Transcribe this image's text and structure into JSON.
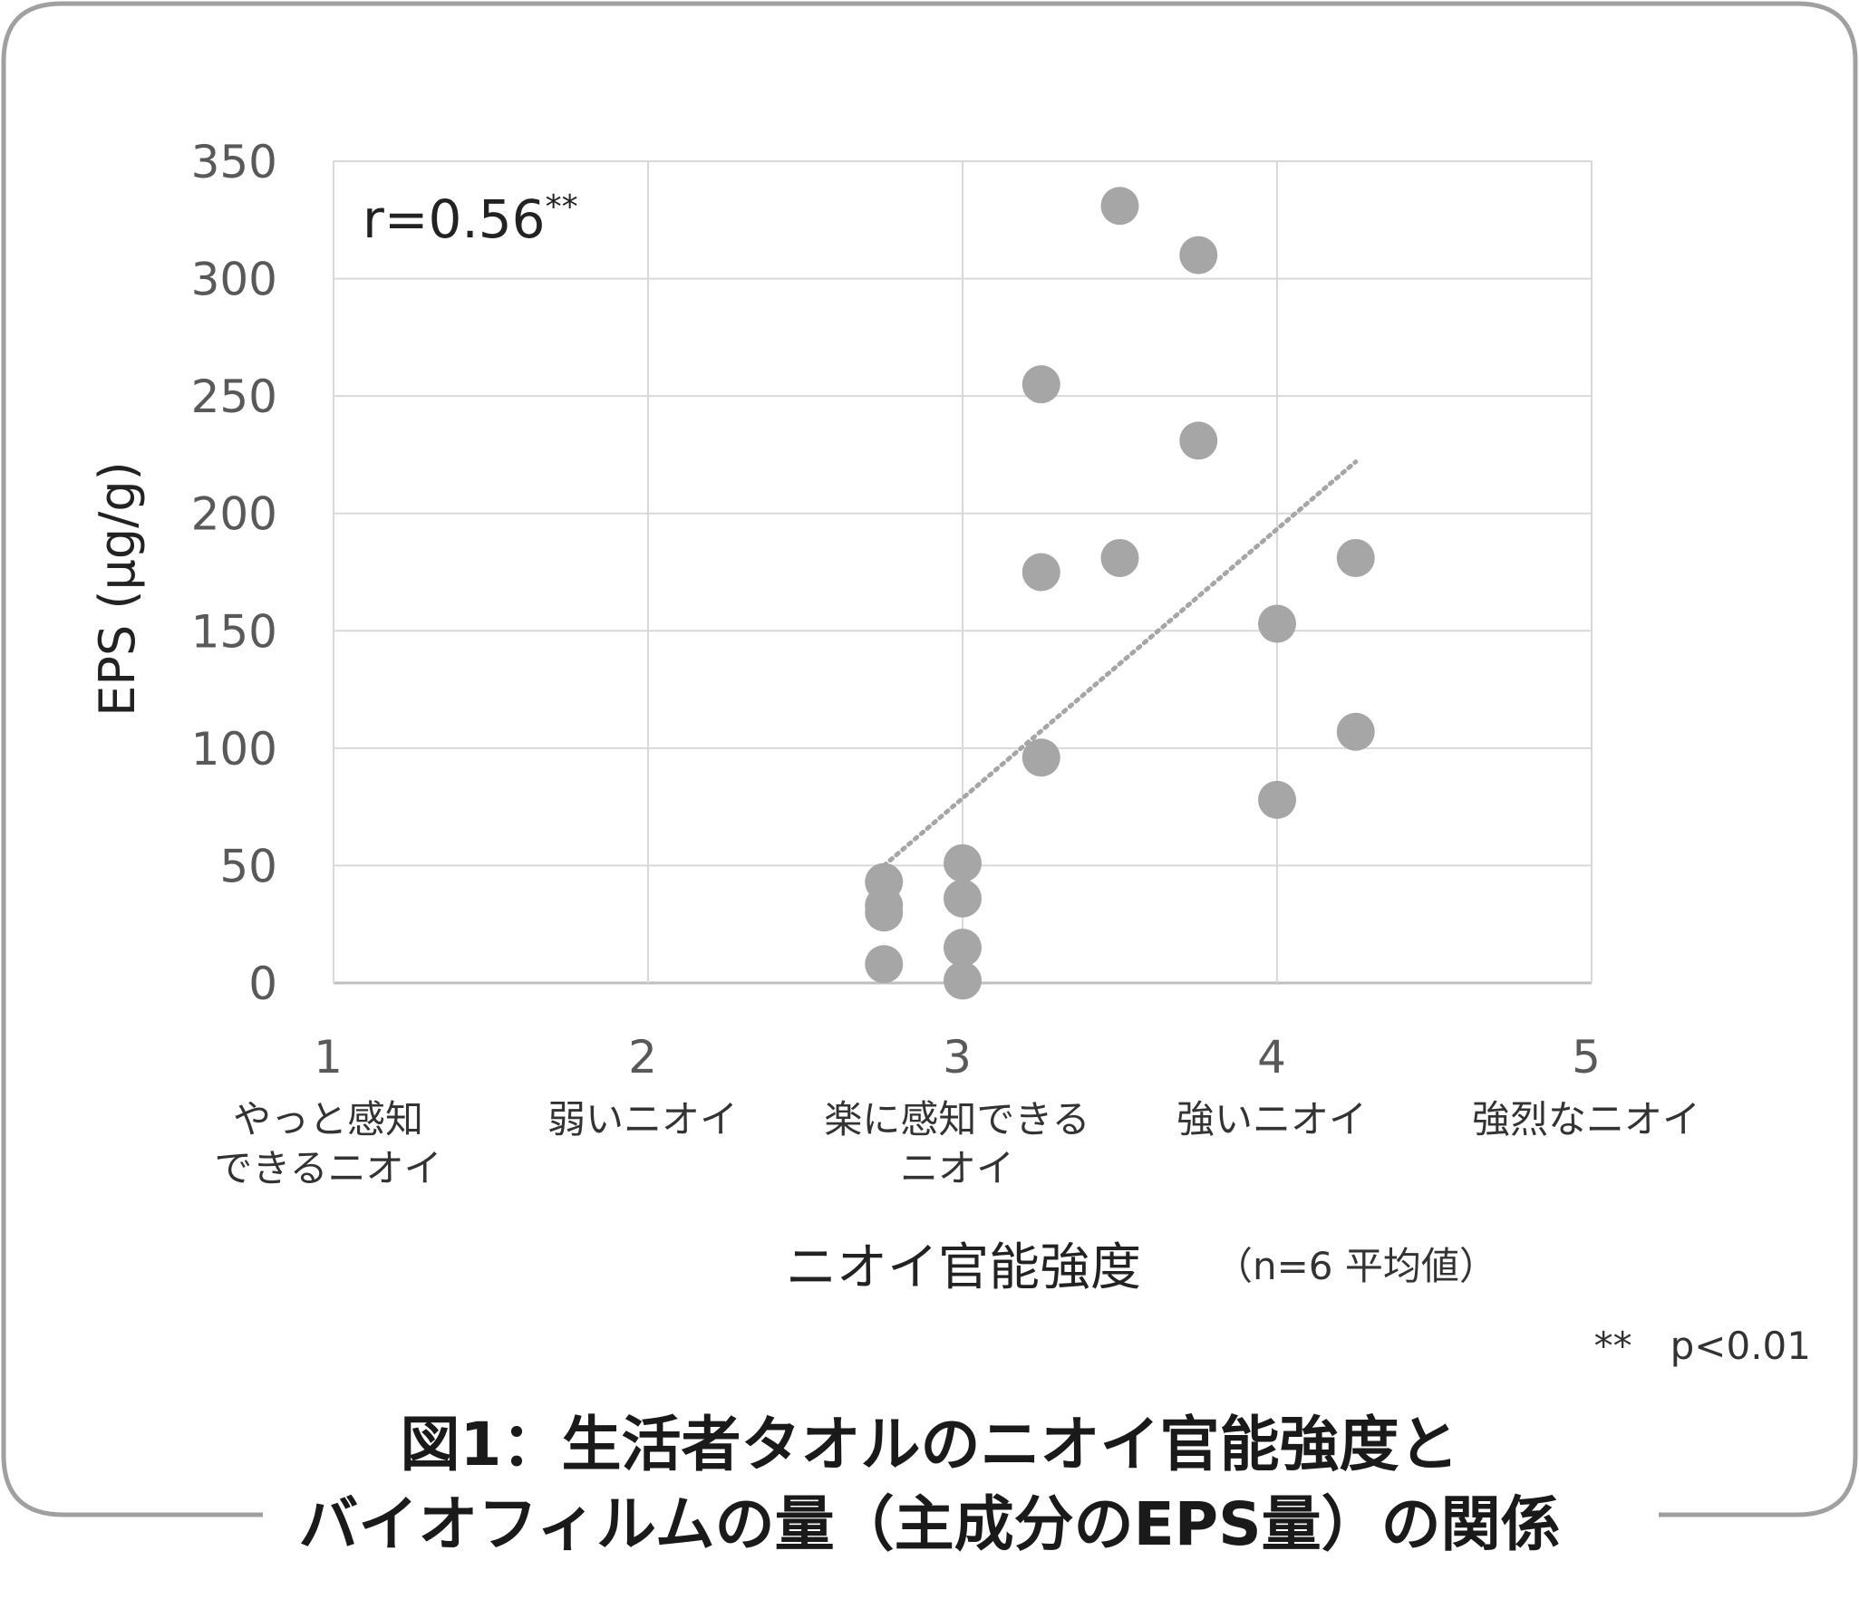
{
  "chart_data": {
    "type": "scatter",
    "ylabel": "EPS (μg/g)",
    "xlabel": "ニオイ官能強度",
    "xlabel_note": "（n=6 平均値）",
    "xlim": [
      1,
      5
    ],
    "ylim": [
      0,
      350
    ],
    "y_ticks": [
      0,
      50,
      100,
      150,
      200,
      250,
      300,
      350
    ],
    "x_ticks": [
      {
        "value": 1,
        "label": "1",
        "desc": [
          "やっと感知",
          "できるニオイ"
        ]
      },
      {
        "value": 2,
        "label": "2",
        "desc": [
          "弱いニオイ"
        ]
      },
      {
        "value": 3,
        "label": "3",
        "desc": [
          "楽に感知できる",
          "ニオイ"
        ]
      },
      {
        "value": 4,
        "label": "4",
        "desc": [
          "強いニオイ"
        ]
      },
      {
        "value": 5,
        "label": "5",
        "desc": [
          "強烈なニオイ"
        ]
      }
    ],
    "grid": true,
    "points": [
      {
        "x": 2.75,
        "y": 43
      },
      {
        "x": 2.75,
        "y": 33
      },
      {
        "x": 2.75,
        "y": 30
      },
      {
        "x": 2.75,
        "y": 8
      },
      {
        "x": 3.0,
        "y": 51
      },
      {
        "x": 3.0,
        "y": 36
      },
      {
        "x": 3.0,
        "y": 15
      },
      {
        "x": 3.0,
        "y": 1
      },
      {
        "x": 3.25,
        "y": 255
      },
      {
        "x": 3.25,
        "y": 175
      },
      {
        "x": 3.25,
        "y": 96
      },
      {
        "x": 3.5,
        "y": 331
      },
      {
        "x": 3.5,
        "y": 181
      },
      {
        "x": 3.75,
        "y": 310
      },
      {
        "x": 3.75,
        "y": 231
      },
      {
        "x": 4.0,
        "y": 153
      },
      {
        "x": 4.0,
        "y": 78
      },
      {
        "x": 4.25,
        "y": 181
      },
      {
        "x": 4.25,
        "y": 107
      }
    ],
    "trendline": {
      "style": "dotted",
      "x": [
        2.75,
        4.25
      ],
      "y": [
        50,
        222
      ]
    },
    "annotation": {
      "r_label": "r=0.56",
      "r_sup": "**"
    },
    "significance_note": "**　p<0.01",
    "colors": {
      "point": "#a6a6a6",
      "grid": "#d9d9d9",
      "axis_text": "#595959",
      "trend": "#a6a6a6"
    }
  },
  "caption": {
    "line1": "図1：生活者タオルのニオイ官能強度と",
    "line2": "バイオフィルムの量（主成分のEPS量）の関係"
  }
}
